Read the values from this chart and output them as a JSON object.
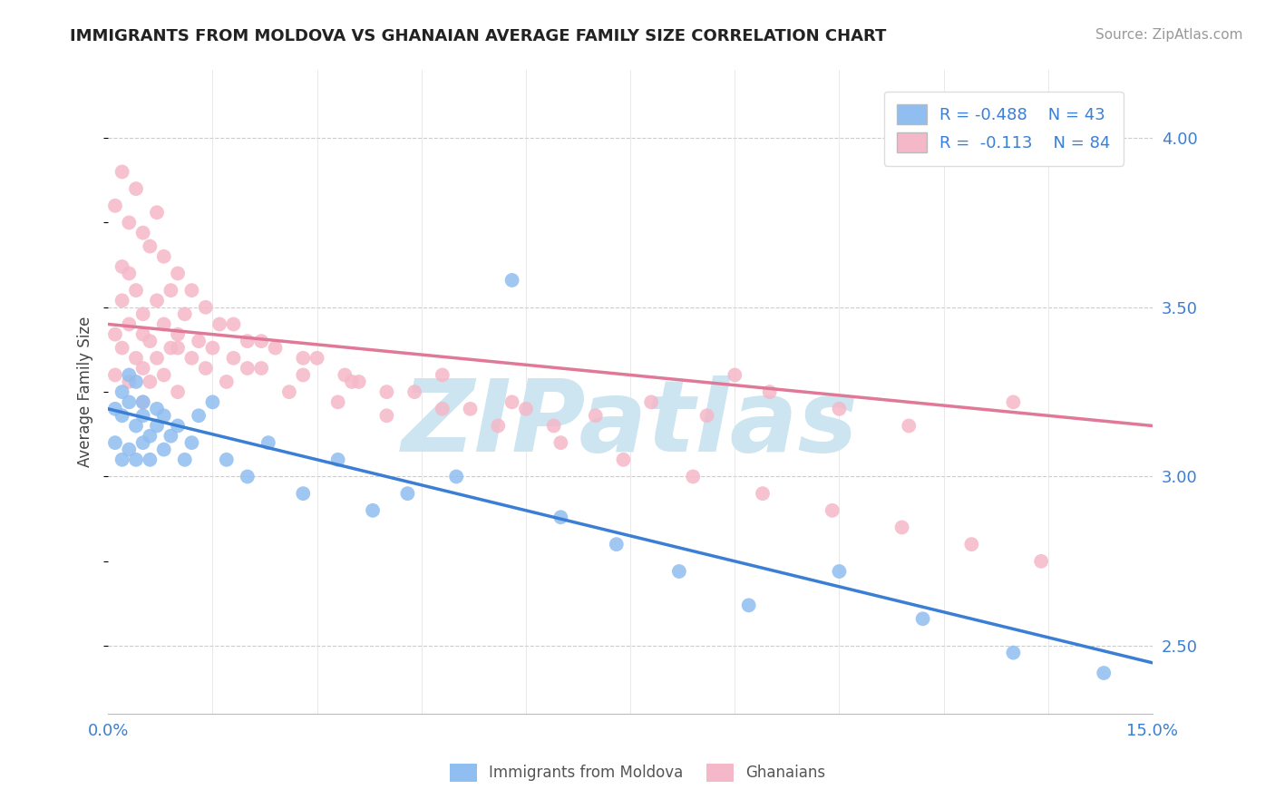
{
  "title": "IMMIGRANTS FROM MOLDOVA VS GHANAIAN AVERAGE FAMILY SIZE CORRELATION CHART",
  "source": "Source: ZipAtlas.com",
  "ylabel": "Average Family Size",
  "xlim": [
    0.0,
    0.15
  ],
  "ylim": [
    2.3,
    4.2
  ],
  "yticks_right": [
    2.5,
    3.0,
    3.5,
    4.0
  ],
  "xticks": [
    0.0,
    0.015,
    0.03,
    0.045,
    0.06,
    0.075,
    0.09,
    0.105,
    0.12,
    0.135,
    0.15
  ],
  "legend_r1": "R = -0.488",
  "legend_n1": "N = 43",
  "legend_r2": "R =  -0.113",
  "legend_n2": "N = 84",
  "color_moldova": "#90bef0",
  "color_ghana": "#f5b8c8",
  "color_line_moldova": "#3a7fd4",
  "color_line_ghana": "#e07898",
  "watermark": "ZIPatlas",
  "watermark_color": "#cce5f0",
  "moldova_x": [
    0.001,
    0.001,
    0.002,
    0.002,
    0.002,
    0.003,
    0.003,
    0.003,
    0.004,
    0.004,
    0.004,
    0.005,
    0.005,
    0.005,
    0.006,
    0.006,
    0.007,
    0.007,
    0.008,
    0.008,
    0.009,
    0.01,
    0.011,
    0.012,
    0.013,
    0.015,
    0.017,
    0.02,
    0.023,
    0.028,
    0.033,
    0.038,
    0.043,
    0.05,
    0.058,
    0.065,
    0.073,
    0.082,
    0.092,
    0.105,
    0.117,
    0.13,
    0.143
  ],
  "moldova_y": [
    3.2,
    3.1,
    3.25,
    3.18,
    3.05,
    3.3,
    3.22,
    3.08,
    3.15,
    3.28,
    3.05,
    3.18,
    3.1,
    3.22,
    3.12,
    3.05,
    3.2,
    3.15,
    3.08,
    3.18,
    3.12,
    3.15,
    3.05,
    3.1,
    3.18,
    3.22,
    3.05,
    3.0,
    3.1,
    2.95,
    3.05,
    2.9,
    2.95,
    3.0,
    3.58,
    2.88,
    2.8,
    2.72,
    2.62,
    2.72,
    2.58,
    2.48,
    2.42
  ],
  "ghana_x": [
    0.001,
    0.001,
    0.002,
    0.002,
    0.003,
    0.003,
    0.003,
    0.004,
    0.004,
    0.005,
    0.005,
    0.005,
    0.006,
    0.006,
    0.007,
    0.007,
    0.008,
    0.008,
    0.009,
    0.009,
    0.01,
    0.01,
    0.011,
    0.012,
    0.013,
    0.014,
    0.015,
    0.016,
    0.017,
    0.018,
    0.02,
    0.022,
    0.024,
    0.026,
    0.028,
    0.03,
    0.033,
    0.036,
    0.04,
    0.044,
    0.048,
    0.052,
    0.058,
    0.064,
    0.07,
    0.078,
    0.086,
    0.095,
    0.105,
    0.115,
    0.001,
    0.002,
    0.003,
    0.004,
    0.005,
    0.006,
    0.007,
    0.008,
    0.01,
    0.012,
    0.014,
    0.018,
    0.022,
    0.028,
    0.034,
    0.04,
    0.048,
    0.056,
    0.065,
    0.074,
    0.084,
    0.094,
    0.104,
    0.114,
    0.124,
    0.134,
    0.002,
    0.005,
    0.01,
    0.02,
    0.035,
    0.06,
    0.09,
    0.13
  ],
  "ghana_y": [
    3.42,
    3.3,
    3.52,
    3.38,
    3.6,
    3.45,
    3.28,
    3.55,
    3.35,
    3.48,
    3.32,
    3.22,
    3.4,
    3.28,
    3.52,
    3.35,
    3.45,
    3.3,
    3.55,
    3.38,
    3.42,
    3.25,
    3.48,
    3.35,
    3.4,
    3.32,
    3.38,
    3.45,
    3.28,
    3.35,
    3.4,
    3.32,
    3.38,
    3.25,
    3.3,
    3.35,
    3.22,
    3.28,
    3.18,
    3.25,
    3.3,
    3.2,
    3.22,
    3.15,
    3.18,
    3.22,
    3.18,
    3.25,
    3.2,
    3.15,
    3.8,
    3.9,
    3.75,
    3.85,
    3.72,
    3.68,
    3.78,
    3.65,
    3.6,
    3.55,
    3.5,
    3.45,
    3.4,
    3.35,
    3.3,
    3.25,
    3.2,
    3.15,
    3.1,
    3.05,
    3.0,
    2.95,
    2.9,
    2.85,
    2.8,
    2.75,
    3.62,
    3.42,
    3.38,
    3.32,
    3.28,
    3.2,
    3.3,
    3.22
  ]
}
